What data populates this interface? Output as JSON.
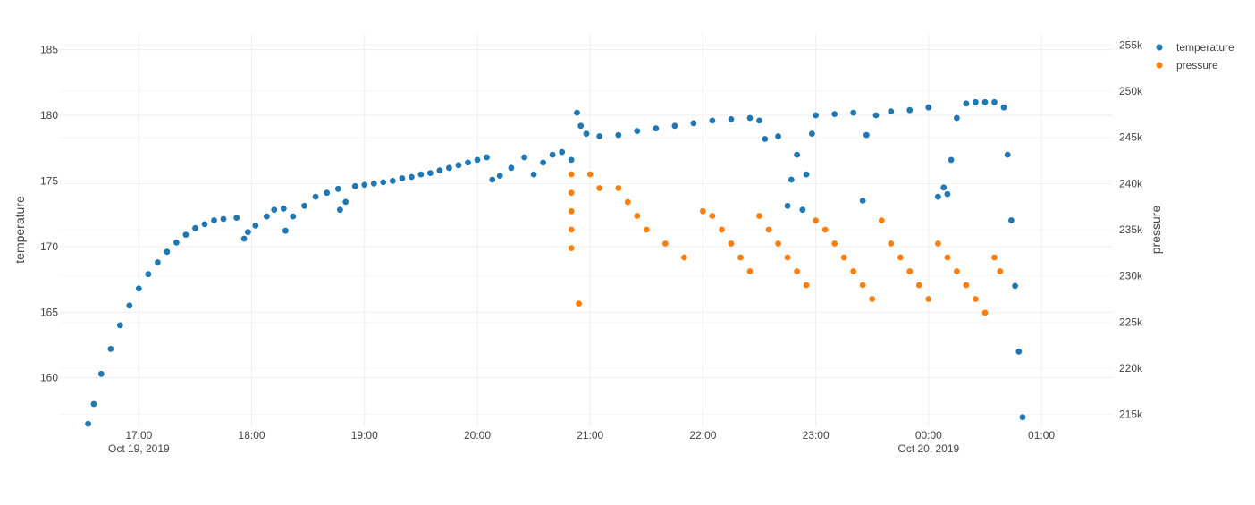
{
  "chart_data": {
    "type": "scatter",
    "title": "",
    "xlabel": "",
    "ylabel": "temperature",
    "y2label": "pressure",
    "grid": true,
    "legend_position": "top-right",
    "x_ticks": [
      {
        "t": "2019-10-19T17:00",
        "label": "17:00",
        "sublabel": "Oct 19, 2019"
      },
      {
        "t": "2019-10-19T18:00",
        "label": "18:00",
        "sublabel": ""
      },
      {
        "t": "2019-10-19T19:00",
        "label": "19:00",
        "sublabel": ""
      },
      {
        "t": "2019-10-19T20:00",
        "label": "20:00",
        "sublabel": ""
      },
      {
        "t": "2019-10-19T21:00",
        "label": "21:00",
        "sublabel": ""
      },
      {
        "t": "2019-10-19T22:00",
        "label": "22:00",
        "sublabel": ""
      },
      {
        "t": "2019-10-19T23:00",
        "label": "23:00",
        "sublabel": ""
      },
      {
        "t": "2019-10-20T00:00",
        "label": "00:00",
        "sublabel": "Oct 20, 2019"
      },
      {
        "t": "2019-10-20T01:00",
        "label": "01:00",
        "sublabel": ""
      }
    ],
    "xlim": [
      "2019-10-19T16:18",
      "2019-10-20T01:38"
    ],
    "y_ticks": [
      {
        "v": 160,
        "label": "160"
      },
      {
        "v": 165,
        "label": "165"
      },
      {
        "v": 170,
        "label": "170"
      },
      {
        "v": 175,
        "label": "175"
      },
      {
        "v": 180,
        "label": "180"
      },
      {
        "v": 185,
        "label": "185"
      }
    ],
    "ylim": [
      156.3,
      186.2
    ],
    "y2_ticks": [
      {
        "v": 215000,
        "label": "215k"
      },
      {
        "v": 220000,
        "label": "220k"
      },
      {
        "v": 225000,
        "label": "225k"
      },
      {
        "v": 230000,
        "label": "230k"
      },
      {
        "v": 235000,
        "label": "235k"
      },
      {
        "v": 240000,
        "label": "240k"
      },
      {
        "v": 245000,
        "label": "245k"
      },
      {
        "v": 250000,
        "label": "250k"
      },
      {
        "v": 255000,
        "label": "255k"
      }
    ],
    "y2lim": [
      213700,
      256200
    ],
    "series": [
      {
        "name": "temperature",
        "axis": "y",
        "color": "#1f77b4",
        "points": [
          [
            "2019-10-19T16:33",
            156.5
          ],
          [
            "2019-10-19T16:36",
            158.0
          ],
          [
            "2019-10-19T16:40",
            160.3
          ],
          [
            "2019-10-19T16:45",
            162.2
          ],
          [
            "2019-10-19T16:50",
            164.0
          ],
          [
            "2019-10-19T16:55",
            165.5
          ],
          [
            "2019-10-19T17:00",
            166.8
          ],
          [
            "2019-10-19T17:05",
            167.9
          ],
          [
            "2019-10-19T17:10",
            168.8
          ],
          [
            "2019-10-19T17:15",
            169.6
          ],
          [
            "2019-10-19T17:20",
            170.3
          ],
          [
            "2019-10-19T17:25",
            170.9
          ],
          [
            "2019-10-19T17:30",
            171.4
          ],
          [
            "2019-10-19T17:35",
            171.7
          ],
          [
            "2019-10-19T17:40",
            172.0
          ],
          [
            "2019-10-19T17:45",
            172.1
          ],
          [
            "2019-10-19T17:52",
            172.2
          ],
          [
            "2019-10-19T17:56",
            170.6
          ],
          [
            "2019-10-19T17:58",
            171.1
          ],
          [
            "2019-10-19T18:02",
            171.6
          ],
          [
            "2019-10-19T18:08",
            172.3
          ],
          [
            "2019-10-19T18:12",
            172.8
          ],
          [
            "2019-10-19T18:17",
            172.9
          ],
          [
            "2019-10-19T18:18",
            171.2
          ],
          [
            "2019-10-19T18:22",
            172.3
          ],
          [
            "2019-10-19T18:28",
            173.1
          ],
          [
            "2019-10-19T18:34",
            173.8
          ],
          [
            "2019-10-19T18:40",
            174.1
          ],
          [
            "2019-10-19T18:46",
            174.4
          ],
          [
            "2019-10-19T18:47",
            172.8
          ],
          [
            "2019-10-19T18:50",
            173.4
          ],
          [
            "2019-10-19T18:55",
            174.6
          ],
          [
            "2019-10-19T19:00",
            174.7
          ],
          [
            "2019-10-19T19:05",
            174.8
          ],
          [
            "2019-10-19T19:10",
            174.9
          ],
          [
            "2019-10-19T19:15",
            175.0
          ],
          [
            "2019-10-19T19:20",
            175.2
          ],
          [
            "2019-10-19T19:25",
            175.3
          ],
          [
            "2019-10-19T19:30",
            175.5
          ],
          [
            "2019-10-19T19:35",
            175.6
          ],
          [
            "2019-10-19T19:40",
            175.8
          ],
          [
            "2019-10-19T19:45",
            176.0
          ],
          [
            "2019-10-19T19:50",
            176.2
          ],
          [
            "2019-10-19T19:55",
            176.4
          ],
          [
            "2019-10-19T20:00",
            176.6
          ],
          [
            "2019-10-19T20:05",
            176.8
          ],
          [
            "2019-10-19T20:08",
            175.1
          ],
          [
            "2019-10-19T20:12",
            175.4
          ],
          [
            "2019-10-19T20:18",
            176.0
          ],
          [
            "2019-10-19T20:25",
            176.8
          ],
          [
            "2019-10-19T20:30",
            175.5
          ],
          [
            "2019-10-19T20:35",
            176.4
          ],
          [
            "2019-10-19T20:40",
            177.0
          ],
          [
            "2019-10-19T20:45",
            177.2
          ],
          [
            "2019-10-19T20:50",
            176.6
          ],
          [
            "2019-10-19T20:53",
            180.2
          ],
          [
            "2019-10-19T20:55",
            179.2
          ],
          [
            "2019-10-19T20:58",
            178.6
          ],
          [
            "2019-10-19T21:05",
            178.4
          ],
          [
            "2019-10-19T21:15",
            178.5
          ],
          [
            "2019-10-19T21:25",
            178.8
          ],
          [
            "2019-10-19T21:35",
            179.0
          ],
          [
            "2019-10-19T21:45",
            179.2
          ],
          [
            "2019-10-19T21:55",
            179.4
          ],
          [
            "2019-10-19T22:05",
            179.6
          ],
          [
            "2019-10-19T22:15",
            179.7
          ],
          [
            "2019-10-19T22:25",
            179.8
          ],
          [
            "2019-10-19T22:30",
            179.6
          ],
          [
            "2019-10-19T22:33",
            178.2
          ],
          [
            "2019-10-19T22:40",
            178.4
          ],
          [
            "2019-10-19T22:45",
            173.1
          ],
          [
            "2019-10-19T22:47",
            175.1
          ],
          [
            "2019-10-19T22:50",
            177.0
          ],
          [
            "2019-10-19T22:53",
            172.8
          ],
          [
            "2019-10-19T22:55",
            175.5
          ],
          [
            "2019-10-19T22:58",
            178.6
          ],
          [
            "2019-10-19T23:00",
            180.0
          ],
          [
            "2019-10-19T23:10",
            180.1
          ],
          [
            "2019-10-19T23:20",
            180.2
          ],
          [
            "2019-10-19T23:25",
            173.5
          ],
          [
            "2019-10-19T23:27",
            178.5
          ],
          [
            "2019-10-19T23:32",
            180.0
          ],
          [
            "2019-10-19T23:40",
            180.3
          ],
          [
            "2019-10-19T23:50",
            180.4
          ],
          [
            "2019-10-20T00:00",
            180.6
          ],
          [
            "2019-10-20T00:05",
            173.8
          ],
          [
            "2019-10-20T00:08",
            174.5
          ],
          [
            "2019-10-20T00:10",
            174.0
          ],
          [
            "2019-10-20T00:12",
            176.6
          ],
          [
            "2019-10-20T00:15",
            179.8
          ],
          [
            "2019-10-20T00:20",
            180.9
          ],
          [
            "2019-10-20T00:25",
            181.0
          ],
          [
            "2019-10-20T00:30",
            181.0
          ],
          [
            "2019-10-20T00:35",
            181.0
          ],
          [
            "2019-10-20T00:40",
            180.6
          ],
          [
            "2019-10-20T00:42",
            177.0
          ],
          [
            "2019-10-20T00:44",
            172.0
          ],
          [
            "2019-10-20T00:46",
            167.0
          ],
          [
            "2019-10-20T00:48",
            162.0
          ],
          [
            "2019-10-20T00:50",
            157.0
          ]
        ]
      },
      {
        "name": "pressure",
        "axis": "y2",
        "color": "#ff7f0e",
        "points": [
          [
            "2019-10-19T20:50",
            241000
          ],
          [
            "2019-10-19T20:50",
            239000
          ],
          [
            "2019-10-19T20:50",
            237000
          ],
          [
            "2019-10-19T20:50",
            235000
          ],
          [
            "2019-10-19T20:50",
            233000
          ],
          [
            "2019-10-19T20:54",
            227000
          ],
          [
            "2019-10-19T21:00",
            241000
          ],
          [
            "2019-10-19T21:05",
            239500
          ],
          [
            "2019-10-19T21:15",
            239500
          ],
          [
            "2019-10-19T21:20",
            238000
          ],
          [
            "2019-10-19T21:25",
            236500
          ],
          [
            "2019-10-19T21:30",
            235000
          ],
          [
            "2019-10-19T21:40",
            233500
          ],
          [
            "2019-10-19T21:50",
            232000
          ],
          [
            "2019-10-19T22:00",
            237000
          ],
          [
            "2019-10-19T22:05",
            236500
          ],
          [
            "2019-10-19T22:10",
            235000
          ],
          [
            "2019-10-19T22:15",
            233500
          ],
          [
            "2019-10-19T22:20",
            232000
          ],
          [
            "2019-10-19T22:25",
            230500
          ],
          [
            "2019-10-19T22:30",
            236500
          ],
          [
            "2019-10-19T22:35",
            235000
          ],
          [
            "2019-10-19T22:40",
            233500
          ],
          [
            "2019-10-19T22:45",
            232000
          ],
          [
            "2019-10-19T22:50",
            230500
          ],
          [
            "2019-10-19T22:55",
            229000
          ],
          [
            "2019-10-19T23:00",
            236000
          ],
          [
            "2019-10-19T23:05",
            235000
          ],
          [
            "2019-10-19T23:10",
            233500
          ],
          [
            "2019-10-19T23:15",
            232000
          ],
          [
            "2019-10-19T23:20",
            230500
          ],
          [
            "2019-10-19T23:25",
            229000
          ],
          [
            "2019-10-19T23:30",
            227500
          ],
          [
            "2019-10-19T23:35",
            236000
          ],
          [
            "2019-10-19T23:40",
            233500
          ],
          [
            "2019-10-19T23:45",
            232000
          ],
          [
            "2019-10-19T23:50",
            230500
          ],
          [
            "2019-10-19T23:55",
            229000
          ],
          [
            "2019-10-20T00:00",
            227500
          ],
          [
            "2019-10-20T00:05",
            233500
          ],
          [
            "2019-10-20T00:10",
            232000
          ],
          [
            "2019-10-20T00:15",
            230500
          ],
          [
            "2019-10-20T00:20",
            229000
          ],
          [
            "2019-10-20T00:25",
            227500
          ],
          [
            "2019-10-20T00:30",
            226000
          ],
          [
            "2019-10-20T00:35",
            232000
          ],
          [
            "2019-10-20T00:38",
            230500
          ]
        ]
      }
    ]
  },
  "legend": {
    "items": [
      {
        "label": "temperature",
        "color": "#1f77b4"
      },
      {
        "label": "pressure",
        "color": "#ff7f0e"
      }
    ]
  }
}
